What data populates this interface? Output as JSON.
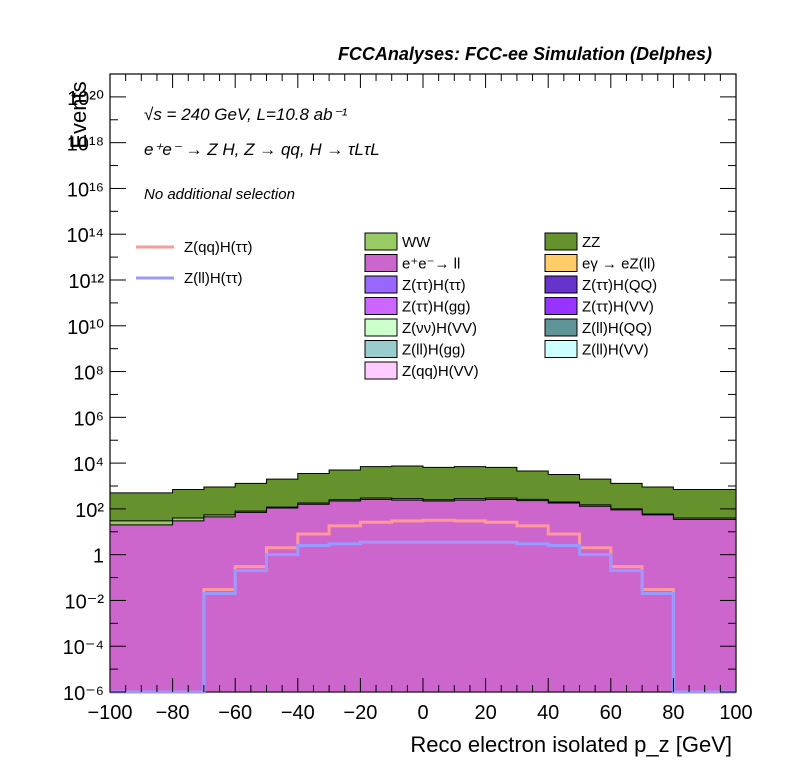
{
  "header": {
    "title": "FCCAnalyses: FCC-ee Simulation (Delphes)",
    "energy": "√s = 240 GeV, L=10.8 ab⁻¹",
    "process": "e⁺e⁻ → Z H, Z → qq, H → τLτL",
    "selection": "No additional selection"
  },
  "chart_data": {
    "type": "area",
    "title": "FCCAnalyses: FCC-ee Simulation (Delphes)",
    "xlabel": "Reco electron isolated p_z [GeV]",
    "ylabel": "Events",
    "xlim": [
      -100,
      100
    ],
    "ylim": [
      1e-06,
      1e+21
    ],
    "yscale": "log",
    "grid": false,
    "legend_position": "top-center",
    "x_ticks": [
      "−100",
      "−80",
      "−60",
      "−40",
      "−20",
      "0",
      "20",
      "40",
      "60",
      "80",
      "100"
    ],
    "y_ticks": [
      "10⁻⁶",
      "10⁻⁴",
      "10⁻²",
      "1",
      "10²",
      "10⁴",
      "10⁶",
      "10⁸",
      "10¹⁰",
      "10¹²",
      "10¹⁴",
      "10¹⁶",
      "10¹⁸",
      "10²⁰"
    ],
    "x": [
      -100,
      -80,
      -70,
      -60,
      -50,
      -40,
      -30,
      -20,
      -10,
      0,
      10,
      20,
      30,
      40,
      50,
      60,
      70,
      80,
      100
    ],
    "stack_order": [
      "e⁺e⁻→ ll",
      "Z(qq)H(VV)",
      "Z(ll)H(gg)",
      "Z(νν)H(VV)",
      "Z(ττ)H(gg)",
      "Z(ττ)H(ττ)",
      "eγ → eZ(ll)",
      "WW",
      "ZZ"
    ],
    "series": [
      {
        "name": "WW",
        "color": "#99cc66",
        "stack_top": [
          30,
          40,
          55,
          80,
          120,
          180,
          250,
          300,
          280,
          250,
          280,
          300,
          260,
          200,
          150,
          100,
          60,
          40,
          30
        ]
      },
      {
        "name": "ZZ",
        "color": "#66922e",
        "stack_top": [
          500,
          700,
          900,
          1300,
          2000,
          3500,
          5000,
          7000,
          7500,
          6500,
          7000,
          6500,
          4500,
          3200,
          2000,
          1300,
          900,
          700,
          500
        ]
      },
      {
        "name": "e⁺e⁻→ ll",
        "color": "#cc66cc",
        "stack_top": [
          20,
          30,
          45,
          70,
          110,
          160,
          220,
          260,
          240,
          220,
          240,
          260,
          230,
          180,
          130,
          90,
          55,
          35,
          20
        ]
      },
      {
        "name": "eγ → eZ(ll)",
        "color": "#ffcc66",
        "stack_top": [
          3,
          3,
          4,
          6,
          10,
          15,
          25,
          35,
          40,
          40,
          40,
          35,
          25,
          15,
          10,
          6,
          4,
          3,
          3
        ]
      },
      {
        "name": "Z(ττ)H(ττ)",
        "color": "#9966ff",
        "stack_top": [
          1e-06,
          1e-06,
          0.01,
          0.03,
          0.05,
          0.1,
          0.2,
          0.3,
          0.3,
          0.3,
          0.3,
          0.3,
          0.2,
          0.15,
          0.01,
          1e-06,
          1e-06,
          1e-06,
          1e-06
        ]
      },
      {
        "name": "Z(ττ)H(QQ)",
        "color": "#6633cc",
        "stack_top": [
          1e-06,
          1e-06,
          0.02,
          0.1,
          0.5,
          1.2,
          2,
          2.5,
          2.5,
          2.5,
          2.5,
          2.5,
          2,
          1.2,
          0.5,
          0.1,
          0.02,
          1e-06,
          1e-06
        ]
      },
      {
        "name": "Z(ττ)H(gg)",
        "color": "#cc66ff",
        "stack_top": [
          1e-06,
          1e-06,
          0.03,
          0.15,
          0.7,
          1.6,
          2.5,
          3,
          3,
          3,
          3,
          3,
          2.5,
          1.6,
          0.7,
          0.15,
          0.03,
          1e-06,
          1e-06
        ]
      },
      {
        "name": "Z(ττ)H(VV)",
        "color": "#9933ff",
        "stack_top": [
          1e-06,
          1e-06,
          0.04,
          0.2,
          0.9,
          2,
          3,
          3.5,
          3.5,
          3.5,
          3.5,
          3.5,
          3,
          2,
          0.9,
          0.2,
          0.04,
          1e-06,
          1e-06
        ]
      },
      {
        "name": "Z(νν)H(VV)",
        "color": "#ccffcc",
        "stack_top": [
          1e-06,
          0.01,
          0.05,
          0.1,
          0.2,
          0.3,
          0.5,
          0.8,
          1,
          1.1,
          1,
          0.8,
          0.5,
          0.3,
          0.2,
          0.1,
          0.05,
          1e-06,
          1e-06
        ]
      },
      {
        "name": "Z(ll)H(QQ)",
        "color": "#5f9499",
        "stack_top": [
          1e-06,
          1e-06,
          0.1,
          0.5,
          2,
          5,
          10,
          14,
          15,
          15,
          15,
          14,
          10,
          5,
          2,
          0.5,
          0.1,
          1e-06,
          1e-06
        ]
      },
      {
        "name": "Z(ll)H(gg)",
        "color": "#99cccc",
        "stack_top": [
          1e-06,
          1e-06,
          0.2,
          1,
          4,
          10,
          20,
          28,
          30,
          30,
          30,
          28,
          20,
          10,
          4,
          1,
          0.2,
          1e-06,
          1e-06
        ]
      },
      {
        "name": "Z(ll)H(VV)",
        "color": "#ccffff",
        "stack_top": [
          1e-06,
          1e-06,
          0.3,
          1.5,
          6,
          15,
          30,
          40,
          45,
          45,
          45,
          40,
          30,
          15,
          6,
          1.5,
          0.3,
          1e-06,
          1e-06
        ]
      },
      {
        "name": "Z(qq)H(VV)",
        "color": "#ffccff",
        "stack_top": [
          1e-06,
          1e-06,
          0.2,
          0.8,
          2,
          4,
          6,
          8,
          9,
          9,
          9,
          8,
          6,
          4,
          2,
          0.8,
          0.2,
          1e-06,
          1e-06
        ]
      }
    ],
    "line_series": [
      {
        "name": "Z(qq)H(ττ)",
        "color": "#ff9999",
        "values": [
          1e-06,
          1e-06,
          0.03,
          0.3,
          2,
          8,
          18,
          26,
          30,
          32,
          30,
          26,
          18,
          8,
          2,
          0.3,
          0.03,
          1e-06,
          1e-06
        ]
      },
      {
        "name": "Z(ll)H(ττ)",
        "color": "#9999ff",
        "values": [
          1e-06,
          1e-06,
          0.02,
          0.2,
          1,
          2.5,
          3,
          3.5,
          3.5,
          3.5,
          3.5,
          3.5,
          3,
          2.5,
          1,
          0.2,
          0.02,
          1e-06,
          1e-06
        ]
      }
    ]
  }
}
